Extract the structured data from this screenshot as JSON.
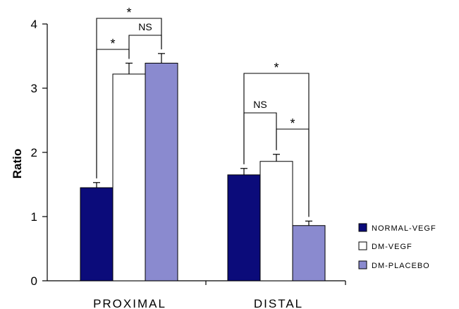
{
  "chart_data": {
    "type": "bar",
    "title": "",
    "xlabel": "",
    "ylabel": "Ratio",
    "ylim": [
      0,
      4
    ],
    "yticks": [
      "0",
      "1",
      "2",
      "3",
      "4"
    ],
    "grid": false,
    "legend_position": "bottom-right",
    "categories": [
      "PROXIMAL",
      "DISTAL"
    ],
    "series": [
      {
        "name": "NORMAL-VEGF",
        "values": [
          1.45,
          1.65
        ],
        "errors": [
          0.08,
          0.1
        ],
        "color": "#0b0b7a"
      },
      {
        "name": "DM-VEGF",
        "values": [
          3.22,
          1.86
        ],
        "errors": [
          0.17,
          0.11
        ],
        "color": "#ffffff"
      },
      {
        "name": "DM-PLACEBO",
        "values": [
          3.39,
          0.86
        ],
        "errors": [
          0.15,
          0.07
        ],
        "color": "#8a8acf"
      }
    ],
    "significance": [
      {
        "category": 0,
        "from": 0,
        "to": 1,
        "label": "*"
      },
      {
        "category": 0,
        "from": 1,
        "to": 2,
        "label": "NS"
      },
      {
        "category": 0,
        "from": 0,
        "to": 2,
        "label": "*"
      },
      {
        "category": 1,
        "from": 0,
        "to": 1,
        "label": "NS"
      },
      {
        "category": 1,
        "from": 1,
        "to": 2,
        "label": "*"
      },
      {
        "category": 1,
        "from": 0,
        "to": 2,
        "label": "*"
      }
    ]
  }
}
